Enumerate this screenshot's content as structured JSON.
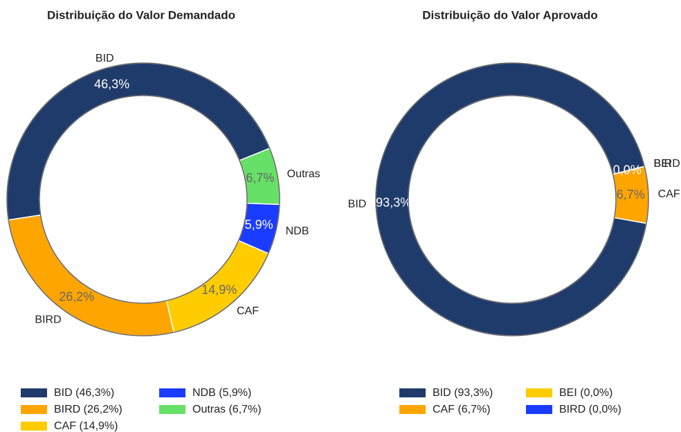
{
  "chart_data": [
    {
      "type": "pie",
      "title": "Distribuição do Valor Demandado",
      "categories": [
        "BID",
        "BIRD",
        "CAF",
        "NDB",
        "Outras"
      ],
      "values": [
        46.3,
        26.2,
        14.9,
        5.9,
        6.7
      ],
      "value_labels": [
        "46,3%",
        "26,2%",
        "14,9%",
        "5,9%",
        "6,7%"
      ],
      "legend_labels": [
        "BID (46,3%)",
        "BIRD (26,2%)",
        "CAF (14,9%)",
        "NDB (5,9%)",
        "Outras (6,7%)"
      ],
      "colors": [
        "#1f3b6b",
        "#ffa500",
        "#ffcc00",
        "#1a3cff",
        "#66e066"
      ]
    },
    {
      "type": "pie",
      "title": "Distribuição do Valor Aprovado",
      "categories": [
        "BID",
        "CAF",
        "BEI",
        "BIRD"
      ],
      "values": [
        93.3,
        6.7,
        0.0,
        0.0
      ],
      "value_labels": [
        "93,3%",
        "6,7%",
        "0,0%",
        "0,0%"
      ],
      "legend_labels": [
        "BID (93,3%)",
        "CAF (6,7%)",
        "BEI (0,0%)",
        "BIRD (0,0%)"
      ],
      "colors": [
        "#1f3b6b",
        "#ffa500",
        "#ffcc00",
        "#1a3cff"
      ]
    }
  ]
}
